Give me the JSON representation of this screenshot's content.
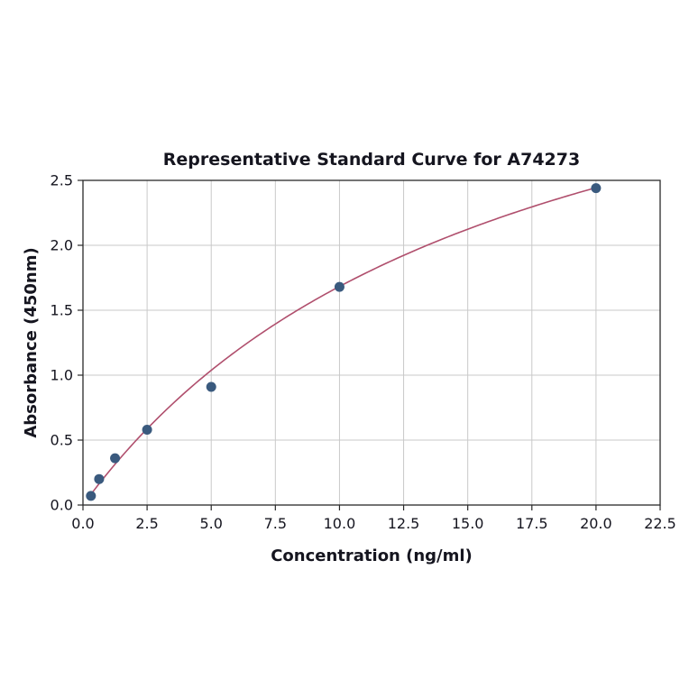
{
  "chart_data": {
    "type": "scatter",
    "title": "Representative Standard Curve for A74273",
    "xlabel": "Concentration (ng/ml)",
    "ylabel": "Absorbance (450nm)",
    "xlim": [
      0,
      22.5
    ],
    "ylim": [
      0,
      2.5
    ],
    "x_ticks": [
      0.0,
      2.5,
      5.0,
      7.5,
      10.0,
      12.5,
      15.0,
      17.5,
      20.0,
      22.5
    ],
    "y_ticks": [
      0.0,
      0.5,
      1.0,
      1.5,
      2.0,
      2.5
    ],
    "grid": true,
    "legend": "none",
    "points": {
      "x": [
        0.31,
        0.63,
        1.25,
        2.5,
        5.0,
        10.0,
        20.0
      ],
      "y": [
        0.07,
        0.2,
        0.36,
        0.58,
        0.91,
        1.68,
        2.44
      ]
    },
    "curve_fit": {
      "model": "saturation",
      "vmax": 4.46,
      "k": 16.5,
      "x_start": 0.31,
      "x_end": 20.0
    },
    "colors": {
      "point": "#3a5a7e",
      "curve": "#b04f6d",
      "grid": "#c9c9c9",
      "axis": "#2a2a2a",
      "text": "#15151f"
    }
  }
}
